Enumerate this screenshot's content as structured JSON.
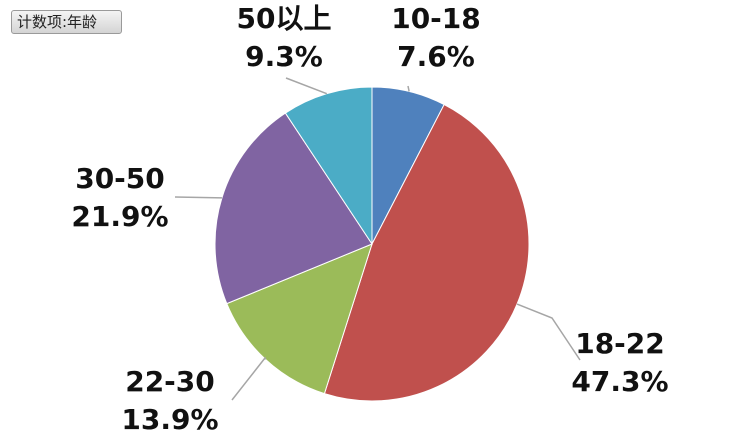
{
  "field_button": {
    "label": "计数项:年龄"
  },
  "chart_data": {
    "type": "pie",
    "categories": [
      "10-18",
      "18-22",
      "22-30",
      "30-50",
      "50以上"
    ],
    "values": [
      7.6,
      47.3,
      13.9,
      21.9,
      9.3
    ],
    "percent_labels": [
      "7.6%",
      "47.3%",
      "13.9%",
      "21.9%",
      "9.3%"
    ],
    "colors": [
      "#4f81bd",
      "#c0504d",
      "#9bbb59",
      "#8064a2",
      "#4bacc6"
    ],
    "title": "",
    "legend": "none",
    "start_angle": "12 o'clock",
    "direction": "clockwise"
  }
}
